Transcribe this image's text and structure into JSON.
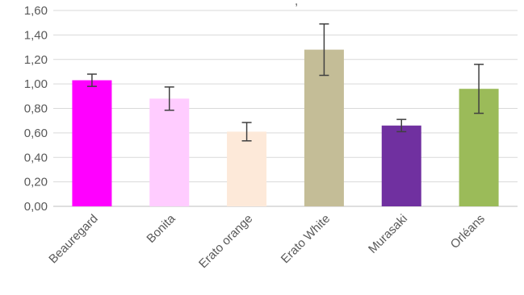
{
  "chart_data": {
    "type": "bar",
    "categories": [
      "Beauregard",
      "Bonita",
      "Erato orange",
      "Erato White",
      "Murasaki",
      "Orléans"
    ],
    "series": [
      {
        "values": [
          1.03,
          0.88,
          0.61,
          1.28,
          0.66,
          0.96
        ],
        "errors": [
          0.05,
          0.095,
          0.075,
          0.21,
          0.05,
          0.2
        ],
        "colors": [
          "#ff00ff",
          "#ffccff",
          "#fde9d9",
          "#c4bd97",
          "#7030a0",
          "#9bbb59"
        ]
      }
    ],
    "ylim": [
      0,
      1.6
    ],
    "yticks": [
      0,
      0.2,
      0.4,
      0.6,
      0.8,
      1.0,
      1.2,
      1.4,
      1.6
    ],
    "ytick_labels": [
      "0,00",
      "0,20",
      "0,40",
      "0,60",
      "0,80",
      "1,00",
      "1,20",
      "1,40",
      "1,60"
    ],
    "grid": true,
    "legend": "none",
    "partial_title_text": ","
  }
}
